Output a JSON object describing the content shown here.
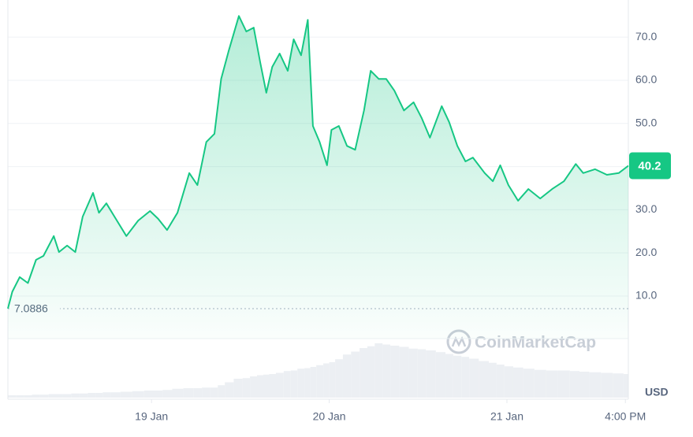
{
  "chart_data": {
    "type": "area",
    "x": [
      -19.4,
      -18.8,
      -17.8,
      -16.7,
      -15.6,
      -14.6,
      -13.2,
      -12.5,
      -11.4,
      -10.3,
      -9.3,
      -7.9,
      -7.1,
      -6.1,
      -5.0,
      -3.4,
      -1.8,
      -0.2,
      0.9,
      2.1,
      3.5,
      5.1,
      6.2,
      7.4,
      8.5,
      9.4,
      10.4,
      11.8,
      12.8,
      13.8,
      14.7,
      15.5,
      16.3,
      17.3,
      18.4,
      19.2,
      20.2,
      21.1,
      21.8,
      22.7,
      23.7,
      24.3,
      25.3,
      26.4,
      27.5,
      28.7,
      29.6,
      30.7,
      31.7,
      32.8,
      34.1,
      35.4,
      36.5,
      37.6,
      39.2,
      40.2,
      41.3,
      42.4,
      43.4,
      45.0,
      46.1,
      47.1,
      48.2,
      49.5,
      50.9,
      52.5,
      54.1,
      55.7,
      57.3,
      58.3,
      59.9,
      61.5,
      63.1,
      64.4
    ],
    "values": [
      7.0886,
      11,
      14.4,
      13,
      18.4,
      19.3,
      23.9,
      20.2,
      21.7,
      20.2,
      28.4,
      33.9,
      29.3,
      31.5,
      28.4,
      23.9,
      27.5,
      29.7,
      27.9,
      25.3,
      29.3,
      38.5,
      35.7,
      45.7,
      47.6,
      60.3,
      66.7,
      74.9,
      71.3,
      72.2,
      64,
      57.1,
      63.1,
      66.2,
      62.2,
      69.5,
      65.8,
      74,
      49.4,
      45.7,
      40.3,
      48.5,
      49.4,
      44.8,
      43.9,
      53,
      62.2,
      60.3,
      60.3,
      57.6,
      53,
      54.9,
      51.2,
      46.7,
      54,
      50.3,
      44.8,
      41.2,
      42.1,
      38.5,
      36.6,
      40.3,
      35.7,
      32.1,
      34.8,
      32.6,
      34.8,
      36.6,
      40.6,
      38.5,
      39.4,
      38.1,
      38.5,
      40.2
    ],
    "color": "#16c784",
    "xlim": [
      -19.4,
      64.4
    ],
    "xticks": [
      {
        "value": 0,
        "label": "19 Jan"
      },
      {
        "value": 24,
        "label": "20 Jan"
      },
      {
        "value": 48,
        "label": "21 Jan"
      },
      {
        "value": 64,
        "label": "4:00 PM"
      }
    ],
    "ylim": [
      0,
      78.6
    ],
    "yticks": [
      {
        "value": 10,
        "label": "10.0"
      },
      {
        "value": 20,
        "label": "20.0"
      },
      {
        "value": 30,
        "label": "30.0"
      },
      {
        "value": 40,
        "label": "40.0"
      },
      {
        "value": 50,
        "label": "50.0"
      },
      {
        "value": 60,
        "label": "60.0"
      },
      {
        "value": 70,
        "label": "70.0"
      }
    ],
    "grid": true,
    "reference_value": 7.0886,
    "last_value": 40.2,
    "unit": "USD",
    "watermark": "CoinMarketCap",
    "volume": {
      "values": [
        4,
        4,
        4,
        4,
        5,
        5,
        6,
        6,
        6,
        7,
        7,
        8,
        8,
        9,
        9,
        10,
        11,
        12,
        12,
        13,
        15,
        16,
        16,
        17,
        17,
        21,
        26,
        32,
        33,
        36,
        38,
        39,
        40,
        42,
        45,
        46,
        49,
        50,
        52,
        55,
        58,
        60,
        65,
        73,
        78,
        84,
        87,
        92,
        90,
        88,
        86,
        83,
        82,
        80,
        77,
        74,
        71,
        69,
        66,
        62,
        59,
        56,
        53,
        51,
        49,
        47,
        46,
        46,
        45,
        44,
        43,
        42,
        41,
        40
      ],
      "ylim": [
        0,
        100
      ],
      "color": "#eceff3"
    }
  }
}
